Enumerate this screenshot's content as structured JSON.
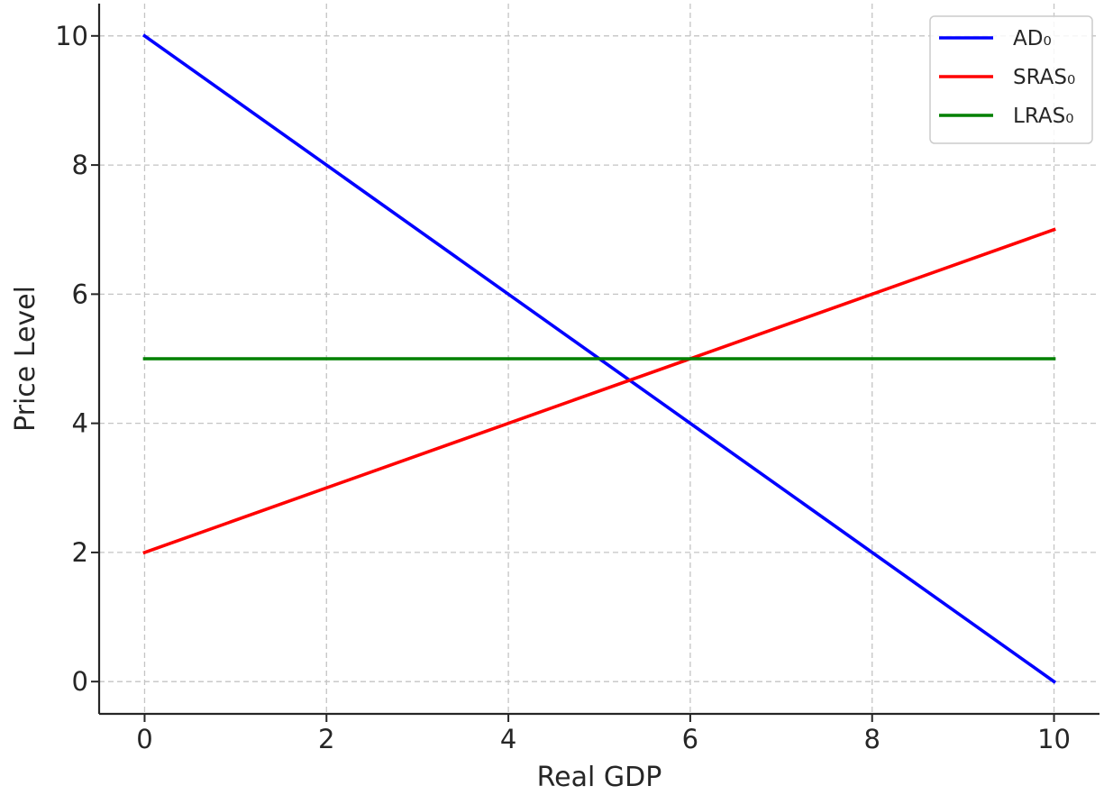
{
  "chart_data": {
    "type": "line",
    "xlabel": "Real GDP",
    "ylabel": "Price Level",
    "xlim": [
      -0.5,
      10.5
    ],
    "ylim": [
      -0.5,
      10.5
    ],
    "x_ticks": [
      0,
      2,
      4,
      6,
      8,
      10
    ],
    "y_ticks": [
      0,
      2,
      4,
      6,
      8,
      10
    ],
    "grid": true,
    "grid_style": "dashed",
    "legend_position": "top-right",
    "series": [
      {
        "name": "AD₀",
        "color": "#0000ff",
        "x": [
          0,
          10
        ],
        "y": [
          10,
          0
        ]
      },
      {
        "name": "SRAS₀",
        "color": "#ff0000",
        "x": [
          0,
          10
        ],
        "y": [
          2,
          7
        ]
      },
      {
        "name": "LRAS₀",
        "color": "#008000",
        "x": [
          0,
          10
        ],
        "y": [
          5,
          5
        ]
      }
    ]
  }
}
